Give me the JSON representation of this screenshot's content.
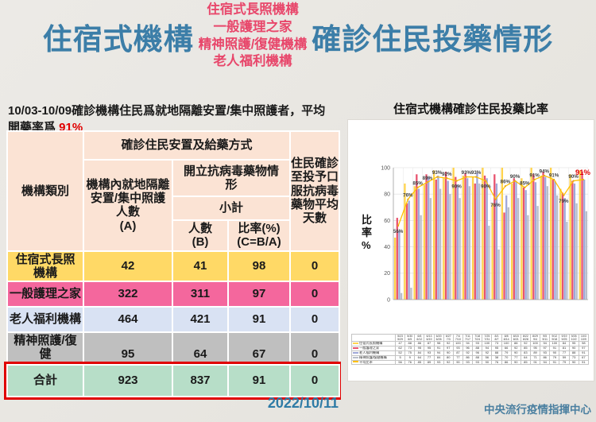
{
  "header": {
    "title_left": "住宿式機構",
    "title_right": "確診住民投藥情形",
    "subtypes": [
      "住宿式長照機構",
      "一般護理之家",
      "精神照護/復健機構",
      "老人福利機構"
    ],
    "title_color": "#3C7EA8",
    "accent_color": "#E8476B"
  },
  "note": {
    "text": "10/03-10/09確診機構住民爲就地隔離安置/集中照護者，平均開藥率爲 ",
    "highlight": "91%"
  },
  "table": {
    "header": {
      "category": "機構類別",
      "placement": "確診住民安置及給藥方式",
      "col_a": "機構內就地隔離\n安置/集中照護\n人數\n(A)",
      "antiviral": "開立抗病毒藥物情\n形",
      "subtotal": "小計",
      "col_b": "人數\n(B)",
      "col_c": "比率(%)\n(C=B/A)",
      "col_days": "住民確診\n至投予口\n服抗病毒\n藥物平均\n天數"
    },
    "rows": [
      {
        "label": "住宿式長照\n機構",
        "a": "42",
        "b": "41",
        "c": "98",
        "d": "0"
      },
      {
        "label": "一般護理之家",
        "a": "322",
        "b": "311",
        "c": "97",
        "d": "0"
      },
      {
        "label": "老人福利機構",
        "a": "464",
        "b": "421",
        "c": "91",
        "d": "0"
      },
      {
        "label": "精神照護/復健\n機構",
        "a": "95",
        "b": "64",
        "c": "67",
        "d": "0"
      }
    ],
    "total": {
      "label": "合計",
      "a": "923",
      "b": "837",
      "c": "91",
      "d": "0"
    }
  },
  "date": "2022/10/11",
  "footer": {
    "org": "中央流行疫情指揮中心"
  },
  "chart_data": {
    "type": "combo-bar-line",
    "title": "住宿式機構確診住民投藥比率",
    "ylabel": "比率%",
    "ylim": [
      0,
      100
    ],
    "yticks": [
      0,
      20,
      40,
      60,
      80,
      100
    ],
    "grid": true,
    "legend_position": "bottom-table",
    "categories": [
      "5/23-5/29",
      "5/30-6/5",
      "6/6-6/12",
      "6/13-6/19",
      "6/20-6/26",
      "6/27-7/3",
      "7/4-7/10",
      "7/11-7/17",
      "7/18-7/24",
      "7/25-7/31",
      "8/1-8/7",
      "8/8-8/14",
      "8/15-8/21",
      "8/22-8/28",
      "8/29-9/4",
      "9/5-9/11",
      "9/12-9/18",
      "9/19-9/25",
      "9/26-10/2",
      "10/3-10/9"
    ],
    "bar_series": [
      {
        "name": "住宿式長照機構",
        "color": "#FFD34D",
        "values": [
          47,
          88,
          86,
          87,
          98,
          92,
          100,
          94,
          93,
          100,
          73,
          100,
          88,
          92,
          100,
          94,
          100,
          84,
          95,
          98
        ]
      },
      {
        "name": "一般護理之家",
        "color": "#E8536F",
        "values": [
          62,
          73,
          95,
          95,
          91,
          97,
          93,
          96,
          88,
          94,
          95,
          66,
          92,
          85,
          95,
          97,
          91,
          81,
          90,
          97
        ]
      },
      {
        "name": "老人福利機構",
        "color": "#9FA8D8",
        "values": [
          52,
          75,
          84,
          93,
          94,
          90,
          87,
          92,
          96,
          92,
          88,
          79,
          90,
          83,
          89,
          93,
          90,
          77,
          88,
          91
        ]
      },
      {
        "name": "精神照護/復健機構",
        "color": "#B9BEC9",
        "values": [
          5,
          9,
          64,
          77,
          84,
          80,
          77,
          86,
          88,
          56,
          38,
          70,
          77,
          64,
          71,
          86,
          79,
          59,
          73,
          67
        ]
      }
    ],
    "line_series": {
      "name": "平均比率",
      "color": "#FFC000",
      "marker_color": "#E6A817",
      "values": [
        56,
        76,
        85,
        89,
        93,
        92,
        90,
        93,
        93,
        90,
        76,
        86,
        90,
        85,
        91,
        94,
        91,
        79,
        90,
        91
      ],
      "labels_below_idx": [
        0,
        6,
        9,
        10,
        17
      ],
      "label_color": "#3F3F3F",
      "final_label_color": "#E00000"
    }
  }
}
